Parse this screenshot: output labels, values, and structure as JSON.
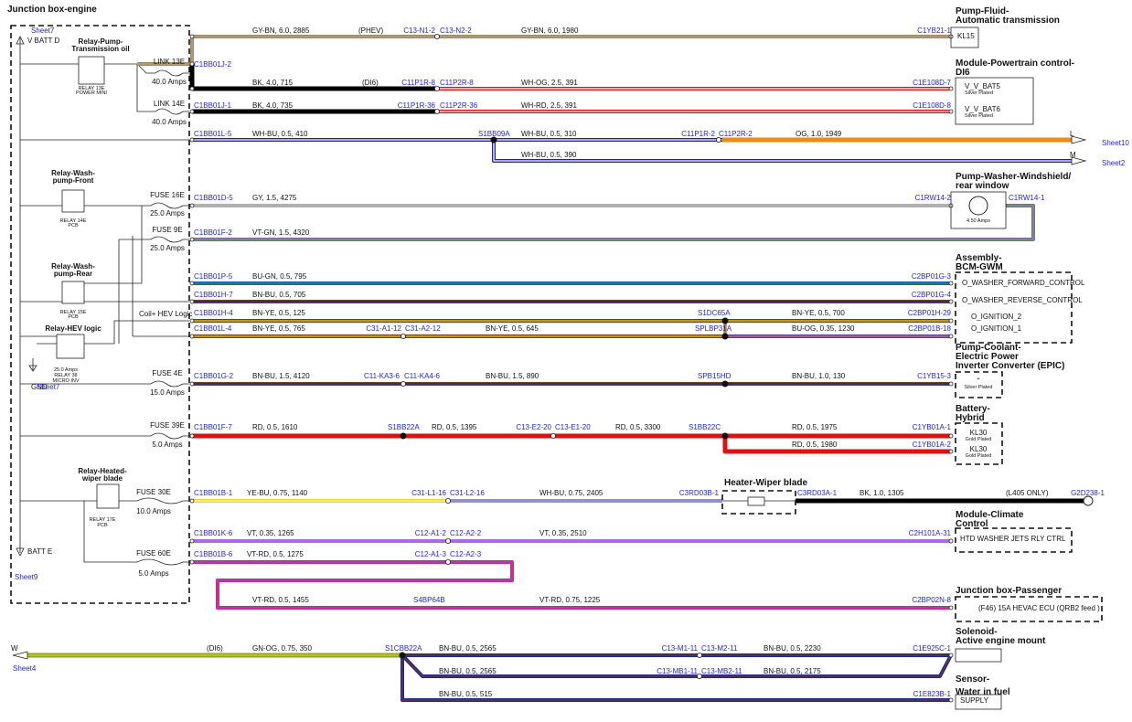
{
  "junction_box": {
    "title": "Junction box-engine",
    "labels": [
      "Sheet7",
      "V BATT D",
      "Relay-Pump-",
      "Transmission oil",
      "RELAY 13E",
      "POWER MINI",
      "LINK 13E",
      "40.0 Amps",
      "LINK 14E",
      "40.0 Amps",
      "Relay-Wash-",
      "pump-Front",
      "RELAY 14E",
      "PCB",
      "FUSE 16E",
      "25.0 Amps",
      "FUSE 9E",
      "25.0 Amps",
      "Relay-Wash-",
      "pump-Rear",
      "RELAY 15E",
      "PCB",
      "Relay-HEV logic",
      "Coil+ HEV Logic",
      "25.0 Amps",
      "RELAY 38",
      "MICRO INV",
      "GND",
      "Sheet7",
      "FUSE 4E",
      "15.0 Amps",
      "FUSE 39E",
      "5.0 Amps",
      "Relay-Heated-",
      "wiper blade",
      "RELAY 17E",
      "PCB",
      "FUSE 30E",
      "10.0 Amps",
      "FUSE 60E",
      "5.0 Amps",
      "BATT E",
      "Sheet9"
    ]
  },
  "wires": [
    [
      "C1BB01J-2",
      "GY-BN, 6.0, 2885",
      "(PHEV)",
      "C13-N1-2",
      "C13-N2-2",
      "GY-BN, 6.0, 1980",
      "C1YB21-1"
    ],
    [
      "BK, 4.0, 715",
      "(DI6)",
      "C11P1R-8",
      "C11P2R-8",
      "WH-OG, 2.5, 391",
      "C1E108D-7"
    ],
    [
      "C1BB01J-1",
      "BK, 4.0, 735",
      "C11P1R-36",
      "C11P2R-36",
      "WH-RD, 2.5, 391",
      "C1E108D-8"
    ],
    [
      "C1BB01L-5",
      "WH-BU, 0.5, 410",
      "S1BB09A",
      "WH-BU, 0.5, 310",
      "C11P1R-2",
      "C11P2R-2",
      "OG, 1.0, 1949",
      "L",
      "Sheet10"
    ],
    [
      "WH-BU, 0.5, 390",
      "M",
      "Sheet2"
    ],
    [
      "C1BB01D-5",
      "GY, 1.5, 4275",
      "C1RW14-2",
      "C1RW14-1"
    ],
    [
      "C1BB01F-2",
      "VT-GN, 1.5, 4320"
    ],
    [
      "C1BB01P-5",
      "BU-GN, 0.5, 795",
      "C2BP01G-3"
    ],
    [
      "C1BB01H-7",
      "BN-BU, 0.5, 705",
      "C2BP01G-4"
    ],
    [
      "C1BB01H-4",
      "BN-YE, 0.5, 125",
      "S1DC65A",
      "BN-YE, 0.5, 700",
      "C2BP01H-29"
    ],
    [
      "C1BB01L-4",
      "BN-YE, 0.5, 765",
      "C31-A1-12",
      "C31-A2-12",
      "BN-YE, 0.5, 645",
      "SPLBP31A",
      "BU-OG, 0.35, 1230",
      "C2BP01B-18"
    ],
    [
      "C1BB01G-2",
      "BN-BU, 1.5, 4120",
      "C11-KA3-6",
      "C11-KA4-6",
      "BN-BU, 1.5, 890",
      "SPB15HD",
      "BN-BU, 1.0, 130",
      "C1YB15-3"
    ],
    [
      "C1BB01F-7",
      "RD, 0.5, 1610",
      "S1BB22A",
      "RD, 0.5, 1395",
      "C13-E2-20",
      "C13-E1-20",
      "RD, 0.5, 3300",
      "S1BB22C",
      "RD, 0.5, 1975",
      "C1YB01A-1"
    ],
    [
      "RD, 0.5, 1980",
      "C1YB01A-2"
    ],
    [
      "C1BB01B-1",
      "YE-BU, 0.75, 1140",
      "C31-L1-16",
      "C31-L2-16",
      "WH-BU, 0.75, 2405",
      "C3RD03B-1",
      "C3RD03A-1",
      "BK, 1.0, 1305",
      "(L405 ONLY)",
      "G2D238-1"
    ],
    [
      "C1BB01K-6",
      "VT, 0.35, 1265",
      "C12-A1-2",
      "C12-A2-2",
      "VT, 0.35, 2510",
      "C2H101A-31"
    ],
    [
      "C1BB01B-6",
      "VT-RD, 0.5, 1275",
      "C12-A1-3",
      "C12-A2-3"
    ],
    [
      "VT-RD, 0.5, 1455",
      "S4BP64B",
      "VT-RD, 0.75, 1225",
      "C2BP02N-8"
    ],
    [
      "W",
      "Sheet4",
      "(DI6)",
      "GN-OG, 0.75, 350",
      "S1CBB22A",
      "BN-BU, 0.5, 2565",
      "C13-M1-11",
      "C13-M2-11",
      "BN-BU, 0.5, 2230",
      "C1E925C-1"
    ],
    [
      "BN-BU, 0.5, 2565",
      "C13-MB1-11",
      "C13-MB2-11",
      "BN-BU, 0.5, 2175"
    ],
    [
      "BN-BU, 0.5, 515",
      "C1E823B-1"
    ]
  ],
  "components": [
    {
      "name": [
        "Pump-Fluid-",
        "Automatic transmission"
      ],
      "pins": [
        "KL15"
      ]
    },
    {
      "name": [
        "Module-Powertrain control-",
        "DI6"
      ],
      "pins": [
        "V_V_BAT5",
        "Silver Plated",
        "V_V_BAT6",
        "Silver Plated"
      ]
    },
    {
      "name": [
        "Pump-Washer-Windshield/",
        "rear window"
      ],
      "pins": [
        "4.50 Amps"
      ]
    },
    {
      "name": [
        "Assembly-",
        "BCM-GWM"
      ],
      "pins": [
        "O_WASHER_FORWARD_CONTROL",
        "O_WASHER_REVERSE_CONTROL",
        "O_IGNITION_2",
        "O_IGNITION_1"
      ]
    },
    {
      "name": [
        "Pump-Coolant-",
        "Electric Power",
        "Inverter Converter (EPIC)"
      ],
      "pins": [
        "+",
        "Silver Plated"
      ]
    },
    {
      "name": [
        "Battery-",
        "Hybrid"
      ],
      "pins": [
        "KL30",
        "Gold Plated",
        "KL30",
        "Gold Plated"
      ]
    },
    {
      "name": [
        "Heater-Wiper blade"
      ]
    },
    {
      "name": [
        "Module-Climate",
        "Control"
      ],
      "pins": [
        "HTD WASHER JETS RLY CTRL"
      ]
    },
    {
      "name": [
        "Junction box-Passenger"
      ],
      "pins": [
        "(F46) 15A HEVAC ECU (QRB2 feed )"
      ]
    },
    {
      "name": [
        "Solenoid-",
        "Active engine mount"
      ]
    },
    {
      "name": [
        "Sensor-",
        "Water in fuel"
      ],
      "pins": [
        "SUPPLY"
      ]
    }
  ]
}
